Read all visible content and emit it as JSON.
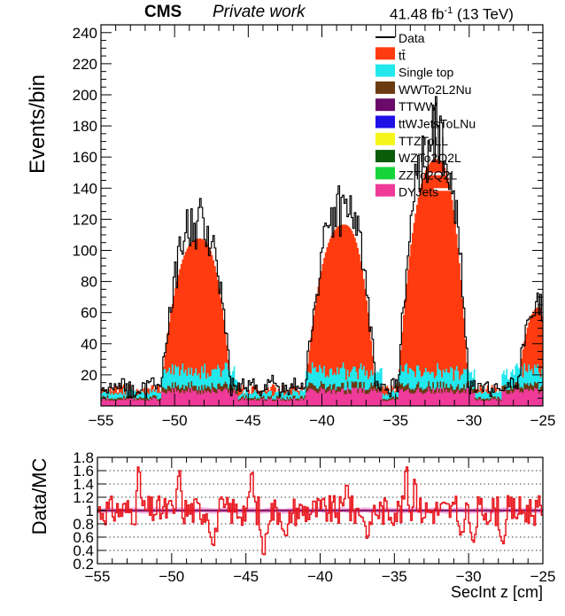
{
  "header": {
    "experiment": "CMS",
    "status": "Private work",
    "lumi_value": "41.48 fb",
    "lumi_exp": "-1",
    "energy": " (13 TeV)"
  },
  "chart_data": [
    {
      "type": "histogram-stacked",
      "ylabel": "Events/bin",
      "xlim": [
        -55,
        -25
      ],
      "ylim": [
        0,
        245
      ],
      "yticks": [
        20,
        40,
        60,
        80,
        100,
        120,
        140,
        160,
        180,
        200,
        220,
        240
      ],
      "xticks": [
        -55,
        -50,
        -45,
        -40,
        -35,
        -30,
        -25
      ],
      "legend": {
        "position": "top-right",
        "entries": [
          {
            "label": "Data",
            "color": "#000000",
            "style": "line"
          },
          {
            "label": "tt̄",
            "color": "#ff3b0f"
          },
          {
            "label": "Single top",
            "color": "#22e8ee"
          },
          {
            "label": "WWTo2L2Nu",
            "color": "#6b3a10"
          },
          {
            "label": "TTWW",
            "color": "#6a0a6a"
          },
          {
            "label": "ttWJetsToLNu",
            "color": "#1f10e6"
          },
          {
            "label": "TTZToLL",
            "color": "#f5f51a"
          },
          {
            "label": "WZTo2Q2L",
            "color": "#0a5c0a"
          },
          {
            "label": "ZZTo2Q2L",
            "color": "#17d43a"
          },
          {
            "label": "DYJets",
            "color": "#ef3a9a"
          }
        ]
      },
      "peaks": [
        {
          "center": -48.3,
          "tt_peak": 104,
          "data_peak": 135
        },
        {
          "center": -38.5,
          "tt_peak": 113,
          "data_peak": 133
        },
        {
          "center": -32.2,
          "tt_peak": 155,
          "data_peak": 230
        },
        {
          "center": -25.2,
          "tt_peak": 60,
          "data_peak": 80
        }
      ],
      "background_level": 12,
      "single_top_level": 6,
      "dy_level": 10
    },
    {
      "type": "ratio",
      "ylabel": "Data/MC",
      "xlabel": "SecInt z [cm]",
      "xlim": [
        -55,
        -25
      ],
      "ylim": [
        0.2,
        1.8
      ],
      "yticks": [
        0.2,
        0.4,
        0.6,
        0.8,
        1,
        1.2,
        1.4,
        1.6,
        1.8
      ],
      "ytick_labels": [
        "0.2",
        "0.4",
        "0.6",
        "0.8",
        "1",
        "1.2",
        "1.4",
        "1.6",
        "1.8"
      ],
      "xticks": [
        -55,
        -50,
        -45,
        -40,
        -35,
        -30,
        -25
      ],
      "xtick_labels": [
        "−55",
        "−50",
        "−45",
        "−40",
        "−35",
        "−30",
        "−25"
      ],
      "reference": 1.0,
      "dips": [
        {
          "x": -47.2,
          "value": 0.4
        },
        {
          "x": -43.8,
          "value": 0.25
        },
        {
          "x": -42.3,
          "value": 0.55
        },
        {
          "x": -36.8,
          "value": 0.55
        },
        {
          "x": -30.5,
          "value": 0.6
        },
        {
          "x": -29.7,
          "value": 0.45
        },
        {
          "x": -27.7,
          "value": 0.45
        }
      ],
      "highs": [
        {
          "x": -52.2,
          "value": 1.8
        },
        {
          "x": -49.5,
          "value": 1.75
        },
        {
          "x": -44.6,
          "value": 1.75
        },
        {
          "x": -38.2,
          "value": 1.55
        },
        {
          "x": -34.2,
          "value": 1.8
        },
        {
          "x": -33.6,
          "value": 1.6
        }
      ]
    }
  ]
}
